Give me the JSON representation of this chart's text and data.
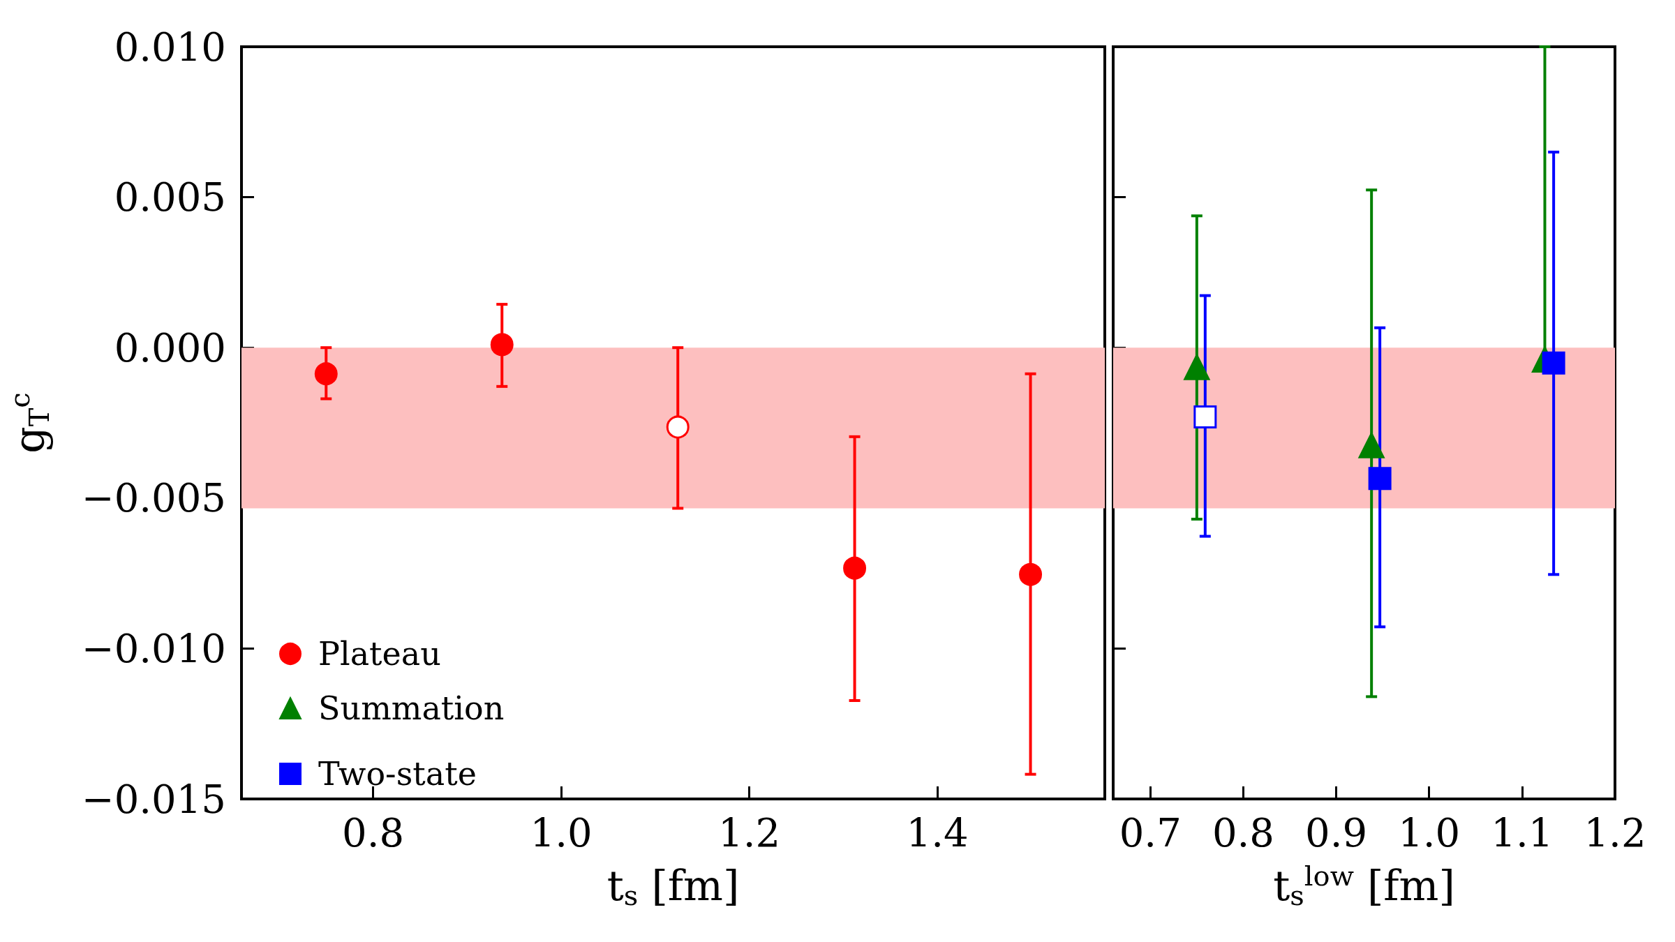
{
  "chart_data": [
    {
      "type": "scatter",
      "xlabel": "t$_{s}$ [fm]",
      "ylabel": "g$_{T}$$^{c}$",
      "xlim": [
        0.66,
        1.578
      ],
      "xticks": [
        {
          "value": 0.8,
          "label": "0.8"
        },
        {
          "value": 1.0,
          "label": "1.0"
        },
        {
          "value": 1.2,
          "label": "1.2"
        },
        {
          "value": 1.4,
          "label": "1.4"
        }
      ],
      "ylim": [
        -0.015,
        0.01
      ],
      "yticks": [
        {
          "value": -0.015,
          "label": "−0.015"
        },
        {
          "value": -0.01,
          "label": "−0.010"
        },
        {
          "value": -0.005,
          "label": "−0.005"
        },
        {
          "value": 0,
          "label": "0.000"
        },
        {
          "value": 0.005,
          "label": "0.005"
        },
        {
          "value": 0.01,
          "label": "0.010"
        }
      ],
      "legend": "bottom left",
      "grid": false,
      "bands": [
        {
          "axis": "y",
          "from": -0.00534,
          "to": 0,
          "color": "#fdbfbf"
        }
      ],
      "series": [
        {
          "name": "Plateau",
          "color": "#ff0000",
          "marker": "circle",
          "x": [
            0.75,
            0.937,
            1.124,
            1.312,
            1.499
          ],
          "values": [
            -0.00087,
            0.0001,
            -0.00264,
            -0.00733,
            -0.00754
          ],
          "colors": [
            "#ff0000",
            "#ff0000",
            "#ffffff",
            "#ff0000",
            "#ff0000"
          ],
          "errors": [
            [
              -0.0017,
              0.0
            ],
            [
              -0.00129,
              0.00144
            ],
            [
              -0.00534,
              0.0
            ],
            [
              -0.01173,
              -0.00296
            ],
            [
              -0.01418,
              -0.00087
            ]
          ]
        }
      ]
    },
    {
      "type": "scatter",
      "xlabel": "t$_{s}$$^{low}$ [fm]",
      "xlim": [
        0.66,
        1.2
      ],
      "xticks": [
        {
          "value": 0.7,
          "label": "0.7"
        },
        {
          "value": 0.8,
          "label": "0.8"
        },
        {
          "value": 0.9,
          "label": "0.9"
        },
        {
          "value": 1.0,
          "label": "1.0"
        },
        {
          "value": 1.1,
          "label": "1.1"
        },
        {
          "value": 1.2,
          "label": "1.2"
        }
      ],
      "ylim": [
        -0.015,
        0.01
      ],
      "yticks": [
        {
          "value": -0.015,
          "label": null
        },
        {
          "value": -0.01,
          "label": null
        },
        {
          "value": -0.005,
          "label": null
        },
        {
          "value": 0,
          "label": null
        },
        {
          "value": 0.005,
          "label": null
        },
        {
          "value": 0.01,
          "label": null
        }
      ],
      "tick_labels": "x",
      "grid": false,
      "legend": "left",
      "bands": [
        {
          "axis": "y",
          "from": -0.00534,
          "to": 0,
          "color": "#fdbfbf"
        }
      ],
      "series": [
        {
          "name": "Summation",
          "color": "#008000",
          "marker": "triangle",
          "x": [
            0.75,
            0.938,
            1.1245
          ],
          "values": [
            -0.00065,
            -0.00325,
            -0.0004
          ],
          "errors": [
            [
              -0.0057,
              0.00438
            ],
            [
              -0.0116,
              0.00524
            ],
            [
              -0.0005,
              0.01
            ]
          ]
        },
        {
          "name": "Two-state",
          "color": "#0000ff",
          "marker": "square",
          "x": [
            0.759,
            0.947,
            1.134
          ],
          "values": [
            -0.0023,
            -0.00435,
            -0.00051
          ],
          "colors": [
            "#ffffff",
            "#0000ff",
            "#0000ff"
          ],
          "errors": [
            [
              -0.00627,
              0.00173
            ],
            [
              -0.00928,
              0.00066
            ],
            [
              -0.00754,
              0.0065
            ]
          ]
        }
      ]
    }
  ]
}
